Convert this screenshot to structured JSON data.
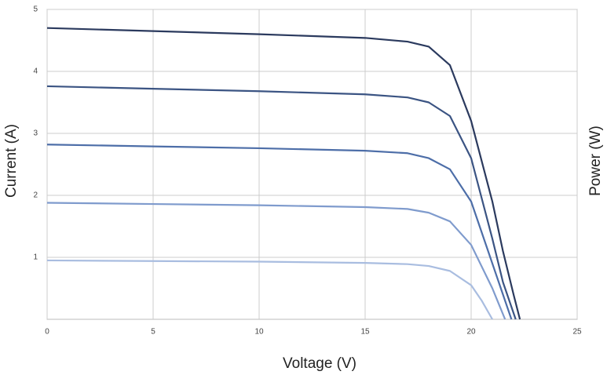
{
  "chart_data": {
    "type": "line",
    "xlabel": "Voltage (V)",
    "ylabel": "Current (A)",
    "y2label": "Power (W)",
    "xlim": [
      0,
      25
    ],
    "xticks": [
      0,
      5,
      10,
      15,
      20,
      25
    ],
    "ylim": [
      0,
      5
    ],
    "yticks": [
      1,
      2,
      3,
      4,
      5
    ],
    "grid": true,
    "series": [
      {
        "color": "#2b3a5e",
        "x": [
          0,
          5,
          10,
          15,
          17,
          18,
          19,
          20,
          21,
          21.5,
          22,
          22.3
        ],
        "values": [
          4.7,
          4.65,
          4.6,
          4.54,
          4.48,
          4.4,
          4.1,
          3.2,
          1.9,
          1.1,
          0.4,
          0
        ]
      },
      {
        "color": "#3b5483",
        "x": [
          0,
          5,
          10,
          15,
          17,
          18,
          19,
          20,
          21,
          21.5,
          22.1
        ],
        "values": [
          3.76,
          3.72,
          3.68,
          3.63,
          3.58,
          3.5,
          3.28,
          2.6,
          1.3,
          0.6,
          0
        ]
      },
      {
        "color": "#4d6ea8",
        "x": [
          0,
          5,
          10,
          15,
          17,
          18,
          19,
          20,
          21,
          21.5,
          21.9
        ],
        "values": [
          2.82,
          2.79,
          2.76,
          2.72,
          2.68,
          2.6,
          2.42,
          1.9,
          0.9,
          0.4,
          0
        ]
      },
      {
        "color": "#7f9bcd",
        "x": [
          0,
          5,
          10,
          15,
          17,
          18,
          19,
          20,
          21,
          21.6
        ],
        "values": [
          1.88,
          1.86,
          1.84,
          1.81,
          1.78,
          1.72,
          1.58,
          1.2,
          0.5,
          0
        ]
      },
      {
        "color": "#a9bde0",
        "x": [
          0,
          5,
          10,
          15,
          17,
          18,
          19,
          20,
          20.5,
          21
        ],
        "values": [
          0.95,
          0.94,
          0.93,
          0.91,
          0.89,
          0.86,
          0.78,
          0.55,
          0.3,
          0
        ]
      }
    ]
  }
}
